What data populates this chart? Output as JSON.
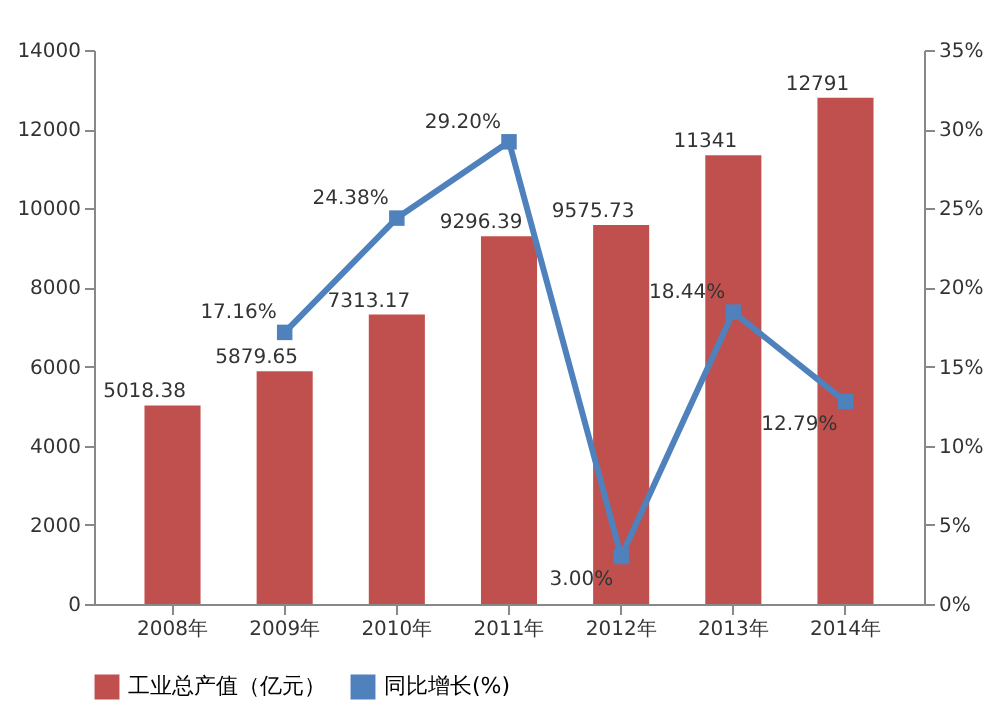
{
  "chart_data": {
    "type": "bar",
    "categories": [
      "2008年",
      "2009年",
      "2010年",
      "2011年",
      "2012年",
      "2013年",
      "2014年"
    ],
    "series": [
      {
        "name": "工业总产值（亿元）",
        "color": "#c0504d",
        "values": [
          5018.38,
          5879.65,
          7313.17,
          9296.39,
          9575.73,
          11341,
          12791
        ],
        "value_labels": [
          "5018.38",
          "5879.65",
          "7313.17",
          "9296.39",
          "9575.73",
          "11341",
          "12791"
        ]
      },
      {
        "name": "同比增长(%)",
        "type": "line",
        "axis": "y2",
        "color": "#4f81bd",
        "values": [
          null,
          17.16,
          24.38,
          29.2,
          3.0,
          18.44,
          12.79
        ],
        "value_labels": [
          null,
          "17.16%",
          "24.38%",
          "29.20%",
          "3.00%",
          "18.44%",
          "12.79%"
        ]
      }
    ],
    "ylim": [
      0,
      14000
    ],
    "yticks": [
      0,
      2000,
      4000,
      6000,
      8000,
      10000,
      12000,
      14000
    ],
    "y2lim": [
      0,
      35
    ],
    "y2ticks": [
      {
        "value": 0,
        "label": "0%"
      },
      {
        "value": 5,
        "label": "5%"
      },
      {
        "value": 10,
        "label": "10%"
      },
      {
        "value": 15,
        "label": "15%"
      },
      {
        "value": 20,
        "label": "20%"
      },
      {
        "value": 25,
        "label": "25%"
      },
      {
        "value": 30,
        "label": "30%"
      },
      {
        "value": 35,
        "label": "35%"
      }
    ],
    "legend": "bottom",
    "marker": "square"
  }
}
